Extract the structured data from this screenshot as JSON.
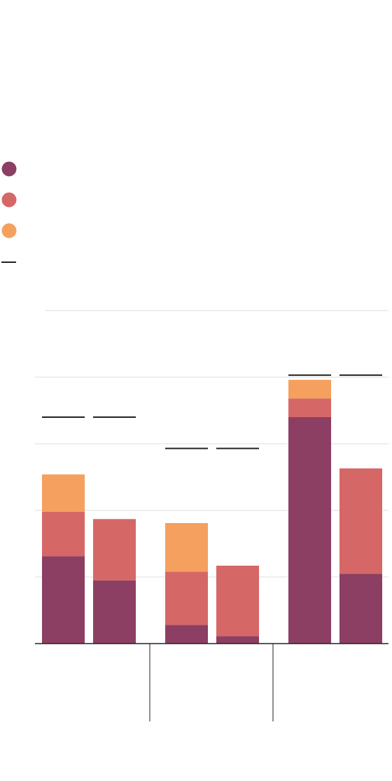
{
  "colors": {
    "segment_1": "#8C3F62",
    "segment_2": "#D66767",
    "segment_3": "#F5A05E",
    "target_line": "#222222",
    "grid": "#dddddd",
    "axis": "#222222"
  },
  "chart_data": {
    "type": "bar",
    "stacked": true,
    "groups": 3,
    "bars_per_group": 2,
    "grid": true,
    "legend_placement": "top-left",
    "y_max": 5,
    "y_gridlines": [
      1,
      2,
      3,
      4,
      5
    ],
    "legend": [
      {
        "marker": "circle",
        "color_key": "segment_1",
        "label": ""
      },
      {
        "marker": "circle",
        "color_key": "segment_2",
        "label": ""
      },
      {
        "marker": "circle",
        "color_key": "segment_3",
        "label": ""
      },
      {
        "marker": "line",
        "color_key": "target_line",
        "label": ""
      }
    ],
    "bars": [
      {
        "group": 0,
        "segments": [
          1.31,
          0.67,
          0.56
        ],
        "target": 3.4
      },
      {
        "group": 0,
        "segments": [
          0.95,
          0.92,
          0.0
        ],
        "target": 3.4
      },
      {
        "group": 1,
        "segments": [
          0.28,
          0.8,
          0.73
        ],
        "target": 2.93
      },
      {
        "group": 1,
        "segments": [
          0.11,
          1.06,
          0.0
        ],
        "target": 2.93
      },
      {
        "group": 2,
        "segments": [
          3.4,
          0.28,
          0.28
        ],
        "target": 4.03
      },
      {
        "group": 2,
        "segments": [
          1.05,
          1.58,
          0.0
        ],
        "target": 4.03
      }
    ]
  }
}
